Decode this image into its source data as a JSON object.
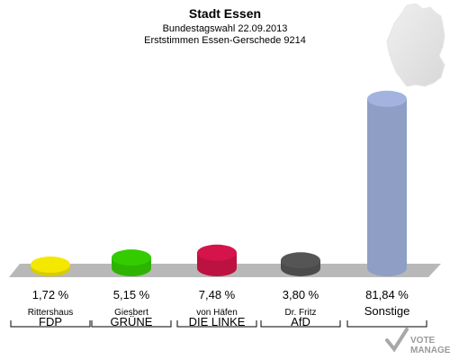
{
  "header": {
    "title": "Stadt Essen",
    "subtitle": "Bundestagswahl 22.09.2013",
    "subtitle2": "Erststimmen Essen-Gerschede 9214"
  },
  "chart_data": {
    "type": "bar",
    "title": "Stadt Essen",
    "categories": [
      "FDP",
      "GRÜNE",
      "DIE LINKE",
      "AfD",
      "Sonstige"
    ],
    "candidates": [
      "Rittershaus",
      "Giesbert",
      "von Häfen",
      "Dr. Fritz",
      ""
    ],
    "values": [
      1.72,
      5.15,
      7.48,
      3.8,
      81.84
    ],
    "value_labels": [
      "1,72 %",
      "5,15 %",
      "7,48 %",
      "3,80 %",
      "81,84 %"
    ],
    "colors": [
      "#f5e800",
      "#33cc00",
      "#d4144a",
      "#555555",
      "#a3b3e0"
    ],
    "ylim": [
      0,
      100
    ],
    "grid": false,
    "legend": "none"
  },
  "watermark": {
    "line1": "VOTE",
    "line2": "MANAGER"
  }
}
